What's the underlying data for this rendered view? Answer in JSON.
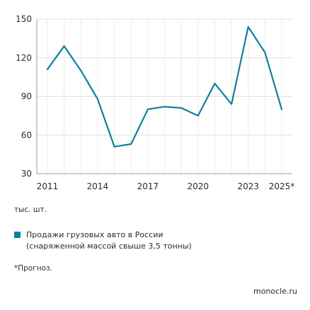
{
  "chart_data": {
    "type": "line",
    "title": "",
    "xlabel": "",
    "ylabel": "",
    "unit": "тыс. шт.",
    "ylim": [
      30,
      150
    ],
    "yticks": [
      30,
      60,
      90,
      120,
      150
    ],
    "xlim": [
      2011,
      2025
    ],
    "xtick_labels": [
      "2011",
      "2014",
      "2017",
      "2020",
      "2023",
      "2025*"
    ],
    "grid": true,
    "legend_placement": "bottom-left",
    "series": [
      {
        "name": "Продажи грузовых авто в России (снаряженной массой свыше 3,5 тонны)",
        "color": "#0f7f9d",
        "x": [
          2011,
          2012,
          2013,
          2014,
          2015,
          2016,
          2017,
          2018,
          2019,
          2020,
          2021,
          2022,
          2023,
          2024,
          2025
        ],
        "values": [
          111,
          129,
          110,
          88,
          51,
          53,
          80,
          82,
          81,
          75,
          100,
          84,
          144,
          124,
          80
        ]
      }
    ]
  },
  "legend": {
    "line1": "Продажи грузовых авто в России",
    "line2": "(снаряженной массой свыше 3,5 тонны)"
  },
  "note": "*Прогноз.",
  "source": "monocle.ru"
}
